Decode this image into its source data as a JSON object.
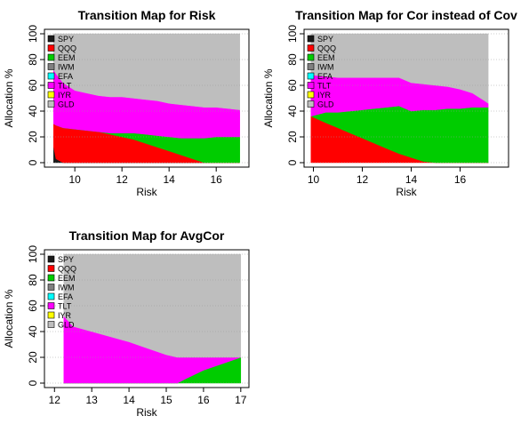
{
  "chart_data": [
    {
      "type": "area",
      "title": "Transition Map for Risk",
      "xlabel": "Risk",
      "ylabel": "Allocation %",
      "xlim": [
        8.9,
        17.2
      ],
      "ylim": [
        0,
        100
      ],
      "xticks": [
        10,
        12,
        14,
        16
      ],
      "yticks": [
        0,
        20,
        40,
        60,
        80,
        100
      ],
      "legend_position": "top-left",
      "legend": [
        "SPY",
        "QQQ",
        "EEM",
        "IWM",
        "EFA",
        "TLT",
        "IYR",
        "GLD"
      ],
      "x": [
        9.1,
        9.2,
        9.5,
        10.0,
        10.5,
        11.0,
        11.5,
        12.0,
        12.5,
        13.0,
        13.5,
        14.0,
        14.5,
        15.0,
        15.5,
        16.0,
        16.5,
        17.0
      ],
      "series": [
        {
          "name": "SPY",
          "values": [
            12,
            3,
            0,
            0,
            0,
            0,
            0,
            0,
            0,
            0,
            0,
            0,
            0,
            0,
            0,
            0,
            0,
            0
          ]
        },
        {
          "name": "QQQ",
          "values": [
            18,
            26,
            27,
            26,
            25,
            24,
            22,
            20,
            18,
            15,
            12,
            9,
            6,
            3,
            0,
            0,
            0,
            0
          ]
        },
        {
          "name": "EEM",
          "values": [
            0,
            0,
            0,
            0,
            0,
            0,
            1,
            3,
            5,
            7,
            9,
            11,
            13,
            16,
            19,
            20,
            20,
            20
          ]
        },
        {
          "name": "IWM",
          "values": [
            0,
            0,
            0,
            0,
            0,
            0,
            0,
            0,
            0,
            0,
            0,
            0,
            0,
            0,
            0,
            0,
            0,
            0
          ]
        },
        {
          "name": "EFA",
          "values": [
            0,
            0,
            0,
            0,
            0,
            0,
            0,
            0,
            0,
            0,
            0,
            0,
            0,
            0,
            0,
            0,
            0,
            0
          ]
        },
        {
          "name": "TLT",
          "values": [
            42,
            40,
            35,
            30,
            29,
            28,
            28,
            28,
            27,
            27,
            27,
            26,
            26,
            25,
            24,
            23,
            22,
            21
          ]
        },
        {
          "name": "IYR",
          "values": [
            0,
            0,
            0,
            0,
            0,
            0,
            0,
            0,
            0,
            0,
            0,
            0,
            0,
            0,
            0,
            0,
            0,
            0
          ]
        },
        {
          "name": "GLD",
          "values": [
            28,
            31,
            38,
            44,
            46,
            48,
            49,
            49,
            50,
            51,
            52,
            54,
            55,
            56,
            57,
            57,
            58,
            59
          ]
        }
      ]
    },
    {
      "type": "area",
      "title": "Transition Map for Cor instead of Cov",
      "xlabel": "Risk",
      "ylabel": "Allocation %",
      "xlim": [
        9.8,
        17.8
      ],
      "ylim": [
        0,
        100
      ],
      "xticks": [
        10,
        12,
        14,
        16
      ],
      "yticks": [
        0,
        20,
        40,
        60,
        80,
        100
      ],
      "legend_position": "top-left",
      "legend": [
        "SPY",
        "QQQ",
        "EEM",
        "IWM",
        "EFA",
        "TLT",
        "IYR",
        "GLD"
      ],
      "x": [
        9.9,
        10.5,
        11.0,
        11.5,
        12.0,
        12.5,
        13.0,
        13.5,
        14.0,
        14.5,
        15.0,
        15.5,
        16.0,
        16.5,
        17.0,
        17.15
      ],
      "series": [
        {
          "name": "SPY",
          "values": [
            0,
            0,
            0,
            0,
            0,
            0,
            0,
            0,
            0,
            0,
            0,
            0,
            0,
            0,
            0,
            0
          ]
        },
        {
          "name": "QQQ",
          "values": [
            36,
            31,
            27,
            23,
            19,
            15,
            11,
            7,
            4,
            1,
            0,
            0,
            0,
            0,
            0,
            0
          ]
        },
        {
          "name": "EEM",
          "values": [
            0,
            8,
            12,
            17,
            22,
            27,
            32,
            37,
            36,
            40,
            41,
            42,
            42,
            43,
            43,
            43
          ]
        },
        {
          "name": "IWM",
          "values": [
            0,
            0,
            0,
            0,
            0,
            0,
            0,
            0,
            0,
            0,
            0,
            0,
            0,
            0,
            0,
            0
          ]
        },
        {
          "name": "EFA",
          "values": [
            0,
            0,
            0,
            0,
            0,
            0,
            0,
            0,
            0,
            0,
            0,
            0,
            0,
            0,
            0,
            0
          ]
        },
        {
          "name": "TLT",
          "values": [
            32,
            28,
            27,
            26,
            25,
            24,
            23,
            22,
            22,
            20,
            19,
            17,
            15,
            11,
            5,
            3
          ]
        },
        {
          "name": "IYR",
          "values": [
            0,
            0,
            0,
            0,
            0,
            0,
            0,
            0,
            0,
            0,
            0,
            0,
            0,
            0,
            0,
            0
          ]
        },
        {
          "name": "GLD",
          "values": [
            32,
            33,
            34,
            34,
            34,
            34,
            34,
            34,
            38,
            39,
            40,
            41,
            43,
            46,
            52,
            54
          ]
        }
      ]
    },
    {
      "type": "area",
      "title": "Transition Map for AvgCor",
      "xlabel": "Risk",
      "ylabel": "Allocation %",
      "xlim": [
        11.85,
        17.1
      ],
      "ylim": [
        0,
        100
      ],
      "xticks": [
        12,
        13,
        14,
        15,
        16,
        17
      ],
      "yticks": [
        0,
        20,
        40,
        60,
        80,
        100
      ],
      "legend_position": "top-left",
      "legend": [
        "SPY",
        "QQQ",
        "EEM",
        "IWM",
        "EFA",
        "TLT",
        "IYR",
        "GLD"
      ],
      "x": [
        12.25,
        12.5,
        13.0,
        13.5,
        14.0,
        14.5,
        15.0,
        15.3,
        15.5,
        16.0,
        16.5,
        17.0
      ],
      "series": [
        {
          "name": "SPY",
          "values": [
            0,
            0,
            0,
            0,
            0,
            0,
            0,
            0,
            0,
            0,
            0,
            0
          ]
        },
        {
          "name": "QQQ",
          "values": [
            0,
            0,
            0,
            0,
            0,
            0,
            0,
            0,
            0,
            0,
            0,
            0
          ]
        },
        {
          "name": "EEM",
          "values": [
            0,
            0,
            0,
            0,
            0,
            0,
            0,
            0,
            3,
            10,
            15,
            20
          ]
        },
        {
          "name": "IWM",
          "values": [
            0,
            0,
            0,
            0,
            0,
            0,
            0,
            0,
            0,
            0,
            0,
            0
          ]
        },
        {
          "name": "EFA",
          "values": [
            0,
            0,
            0,
            0,
            0,
            0,
            0,
            0,
            0,
            0,
            0,
            0
          ]
        },
        {
          "name": "TLT",
          "values": [
            52,
            44,
            40,
            36,
            32,
            27,
            22,
            20,
            17,
            10,
            5,
            0
          ]
        },
        {
          "name": "IYR",
          "values": [
            0,
            0,
            0,
            0,
            0,
            0,
            0,
            0,
            0,
            0,
            0,
            0
          ]
        },
        {
          "name": "GLD",
          "values": [
            48,
            56,
            60,
            64,
            68,
            73,
            78,
            80,
            80,
            80,
            80,
            80
          ]
        }
      ]
    }
  ],
  "colors": {
    "SPY": "#1a1a1a",
    "QQQ": "#ff0000",
    "EEM": "#00cc00",
    "IWM": "#808080",
    "EFA": "#00ffff",
    "TLT": "#ff00ff",
    "IYR": "#ffff00",
    "GLD": "#bebebe"
  }
}
